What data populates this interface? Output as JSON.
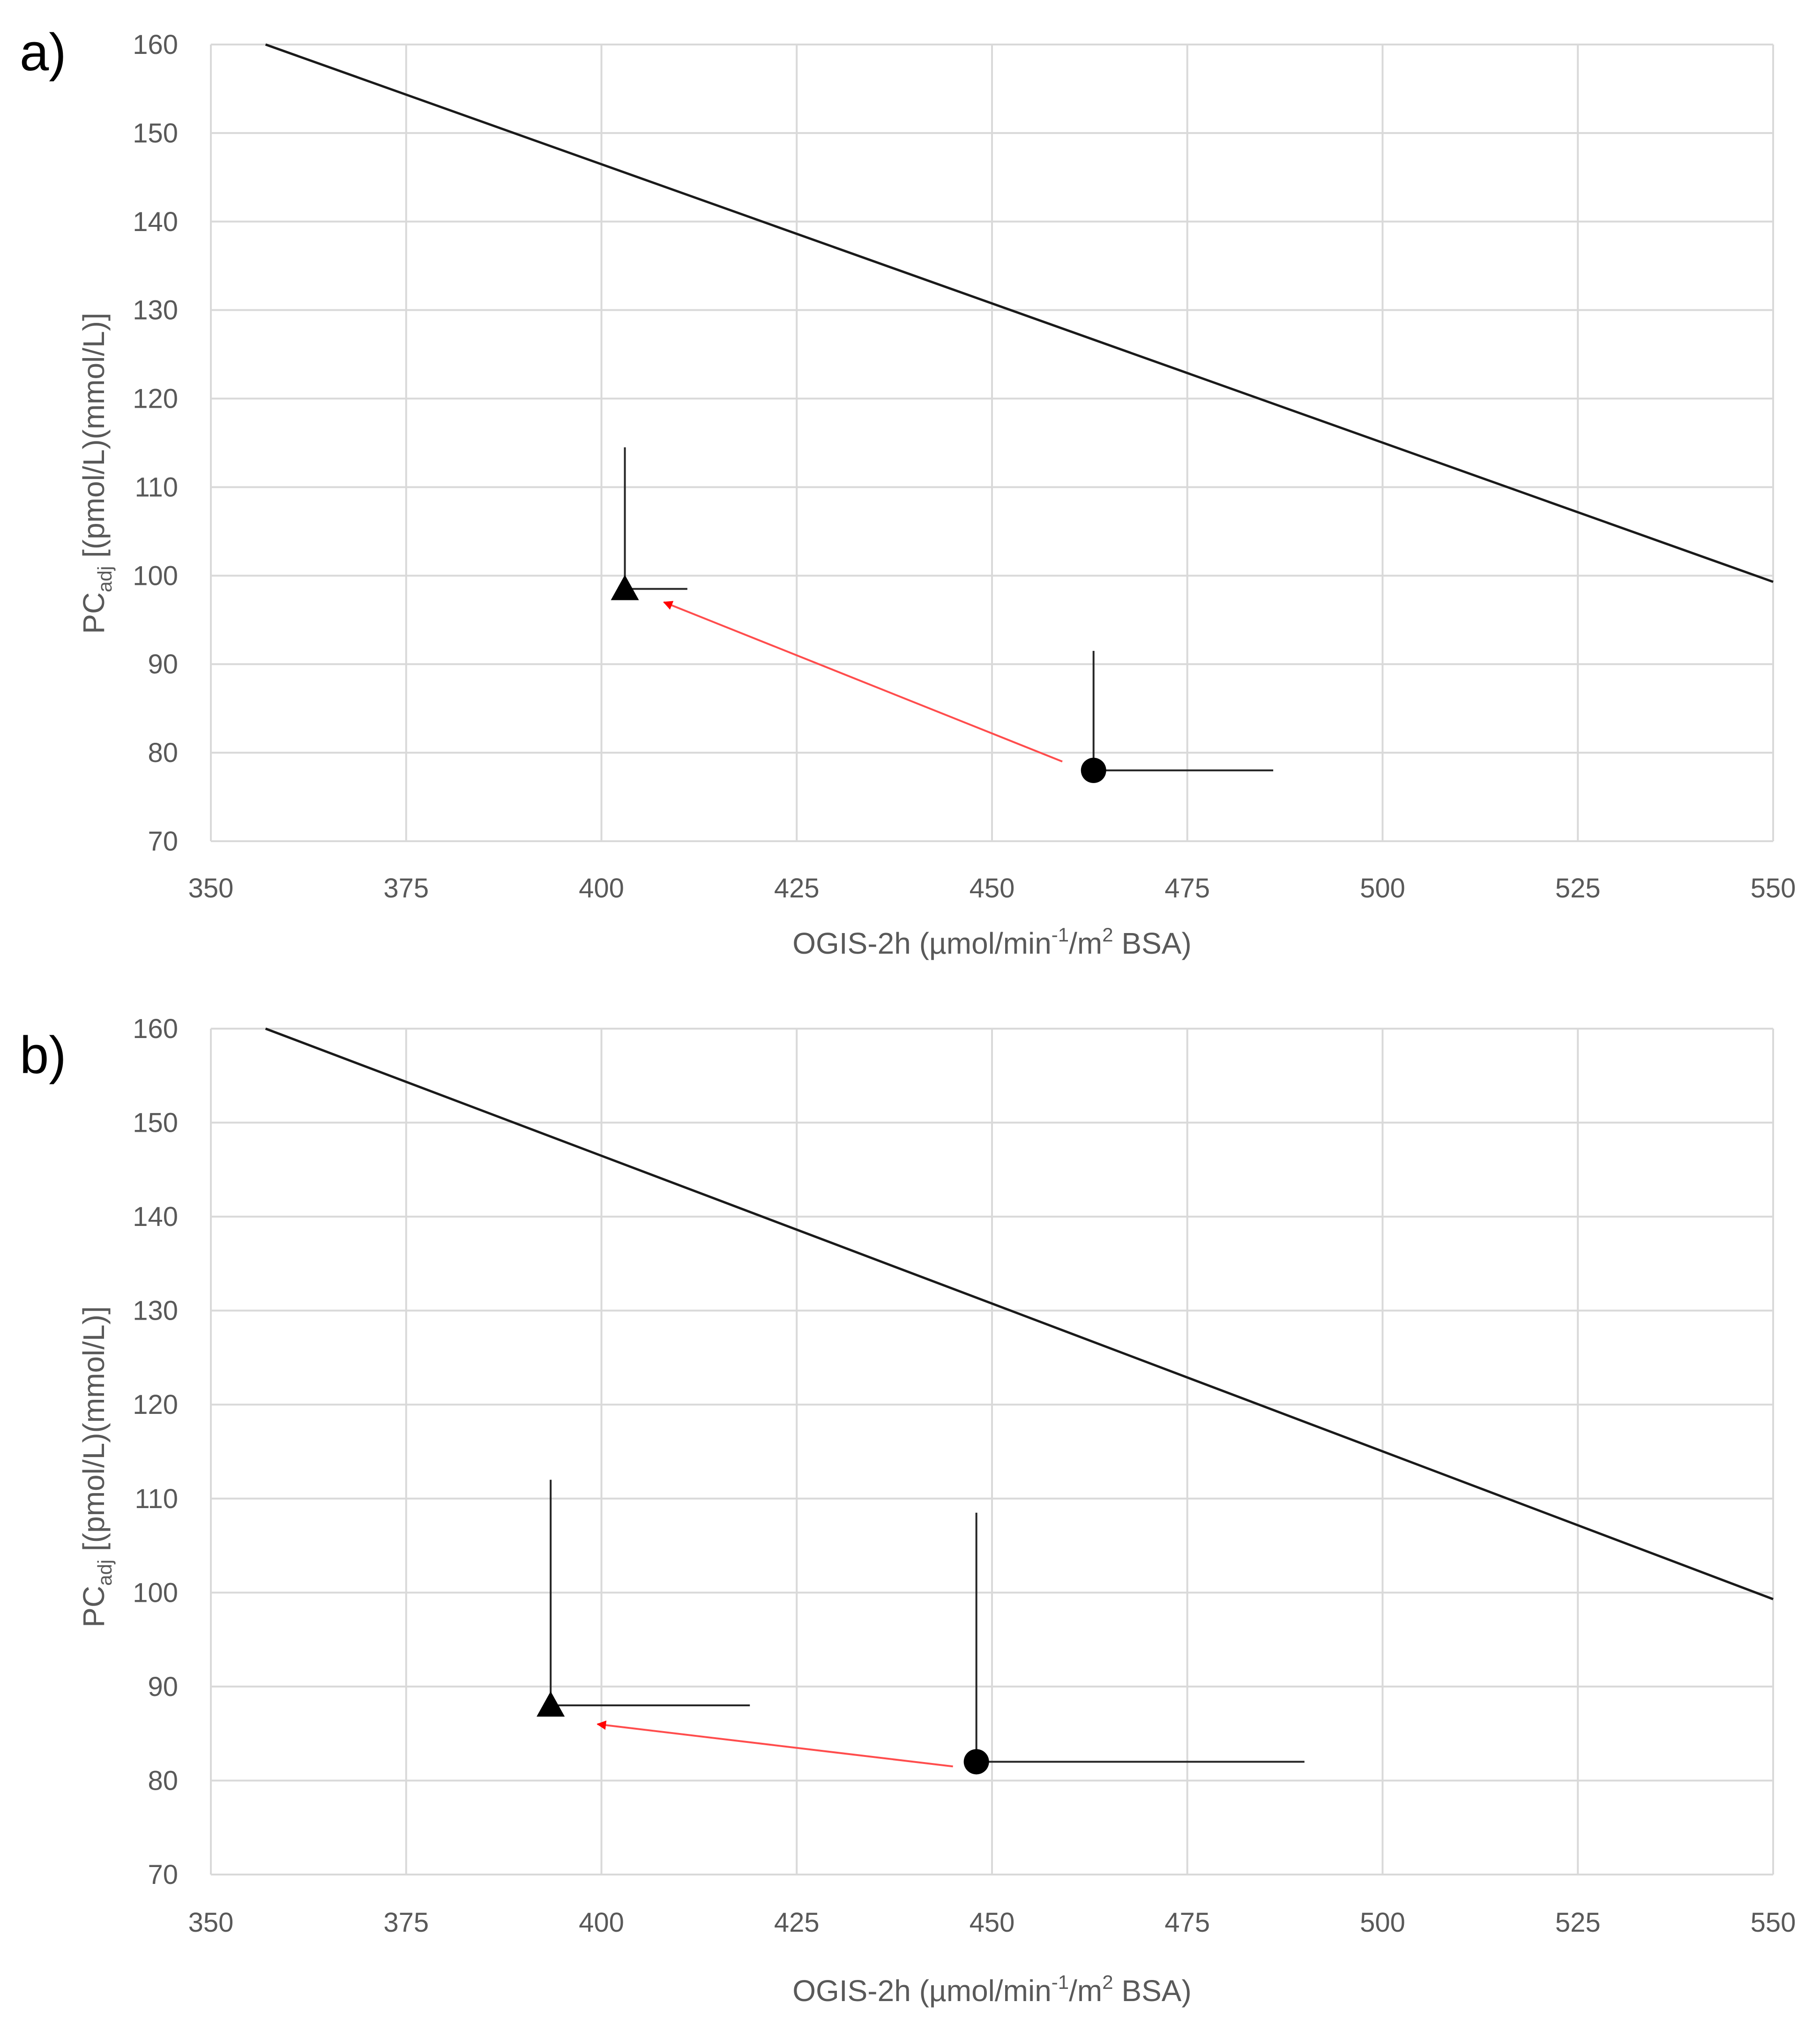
{
  "colors": {
    "grid": "#d9d9d9",
    "line": "#1a1a1a",
    "marker": "#000000",
    "errorbar": "#262626",
    "arrow": "#ff4d4d",
    "tick_text": "#595959"
  },
  "chart_data": [
    {
      "type": "scatter",
      "panel_label": "a)",
      "title": "",
      "xlabel": "OGIS-2h (µmol/min-1/m2 BSA)",
      "xlabel_parts": {
        "main": "OGIS-2h (µmol/min",
        "sup1": "-1",
        "mid": "/m",
        "sup2": "2",
        "end": " BSA)"
      },
      "ylabel": "PCadj [(pmol/L)(mmol/L)]",
      "ylabel_parts": {
        "main": "PC",
        "sub": "adj",
        "end": " [(pmol/L)(mmol/L)]"
      },
      "xlim": [
        350,
        550
      ],
      "ylim": [
        70,
        160
      ],
      "xticks": [
        "350",
        "375",
        "400",
        "425",
        "450",
        "475",
        "500",
        "525",
        "550"
      ],
      "yticks": [
        "70",
        "80",
        "90",
        "100",
        "110",
        "120",
        "130",
        "140",
        "150",
        "160"
      ],
      "grid": true,
      "reference_line": {
        "x": [
          357,
          550
        ],
        "y": [
          160,
          99.3
        ]
      },
      "points": [
        {
          "name": "circle",
          "marker": "circle",
          "x": 463,
          "y": 78,
          "error_x_to": 486,
          "error_y_to": 91.5
        },
        {
          "name": "triangle",
          "marker": "triangle",
          "x": 403,
          "y": 98.5,
          "error_x_to": 411,
          "error_y_to": 114.5
        }
      ],
      "arrow": {
        "from": [
          459,
          79
        ],
        "to": [
          408,
          97
        ]
      }
    },
    {
      "type": "scatter",
      "panel_label": "b)",
      "title": "",
      "xlabel": "OGIS-2h (µmol/min-1/m2 BSA)",
      "xlabel_parts": {
        "main": "OGIS-2h (µmol/min",
        "sup1": "-1",
        "mid": "/m",
        "sup2": "2",
        "end": " BSA)"
      },
      "ylabel": "PCadj [(pmol/L)(mmol/L)]",
      "ylabel_parts": {
        "main": "PC",
        "sub": "adj",
        "end": " [(pmol/L)(mmol/L)]"
      },
      "xlim": [
        350,
        550
      ],
      "ylim": [
        70,
        160
      ],
      "xticks": [
        "350",
        "375",
        "400",
        "425",
        "450",
        "475",
        "500",
        "525",
        "550"
      ],
      "yticks": [
        "70",
        "80",
        "90",
        "100",
        "110",
        "120",
        "130",
        "140",
        "150",
        "160"
      ],
      "grid": true,
      "reference_line": {
        "x": [
          357,
          550
        ],
        "y": [
          160,
          99.3
        ]
      },
      "points": [
        {
          "name": "circle",
          "marker": "circle",
          "x": 448,
          "y": 82,
          "error_x_to": 490,
          "error_y_to": 108.5
        },
        {
          "name": "triangle",
          "marker": "triangle",
          "x": 393.5,
          "y": 88,
          "error_x_to": 419,
          "error_y_to": 112
        }
      ],
      "arrow": {
        "from": [
          445,
          81.5
        ],
        "to": [
          399.5,
          86
        ]
      }
    }
  ]
}
